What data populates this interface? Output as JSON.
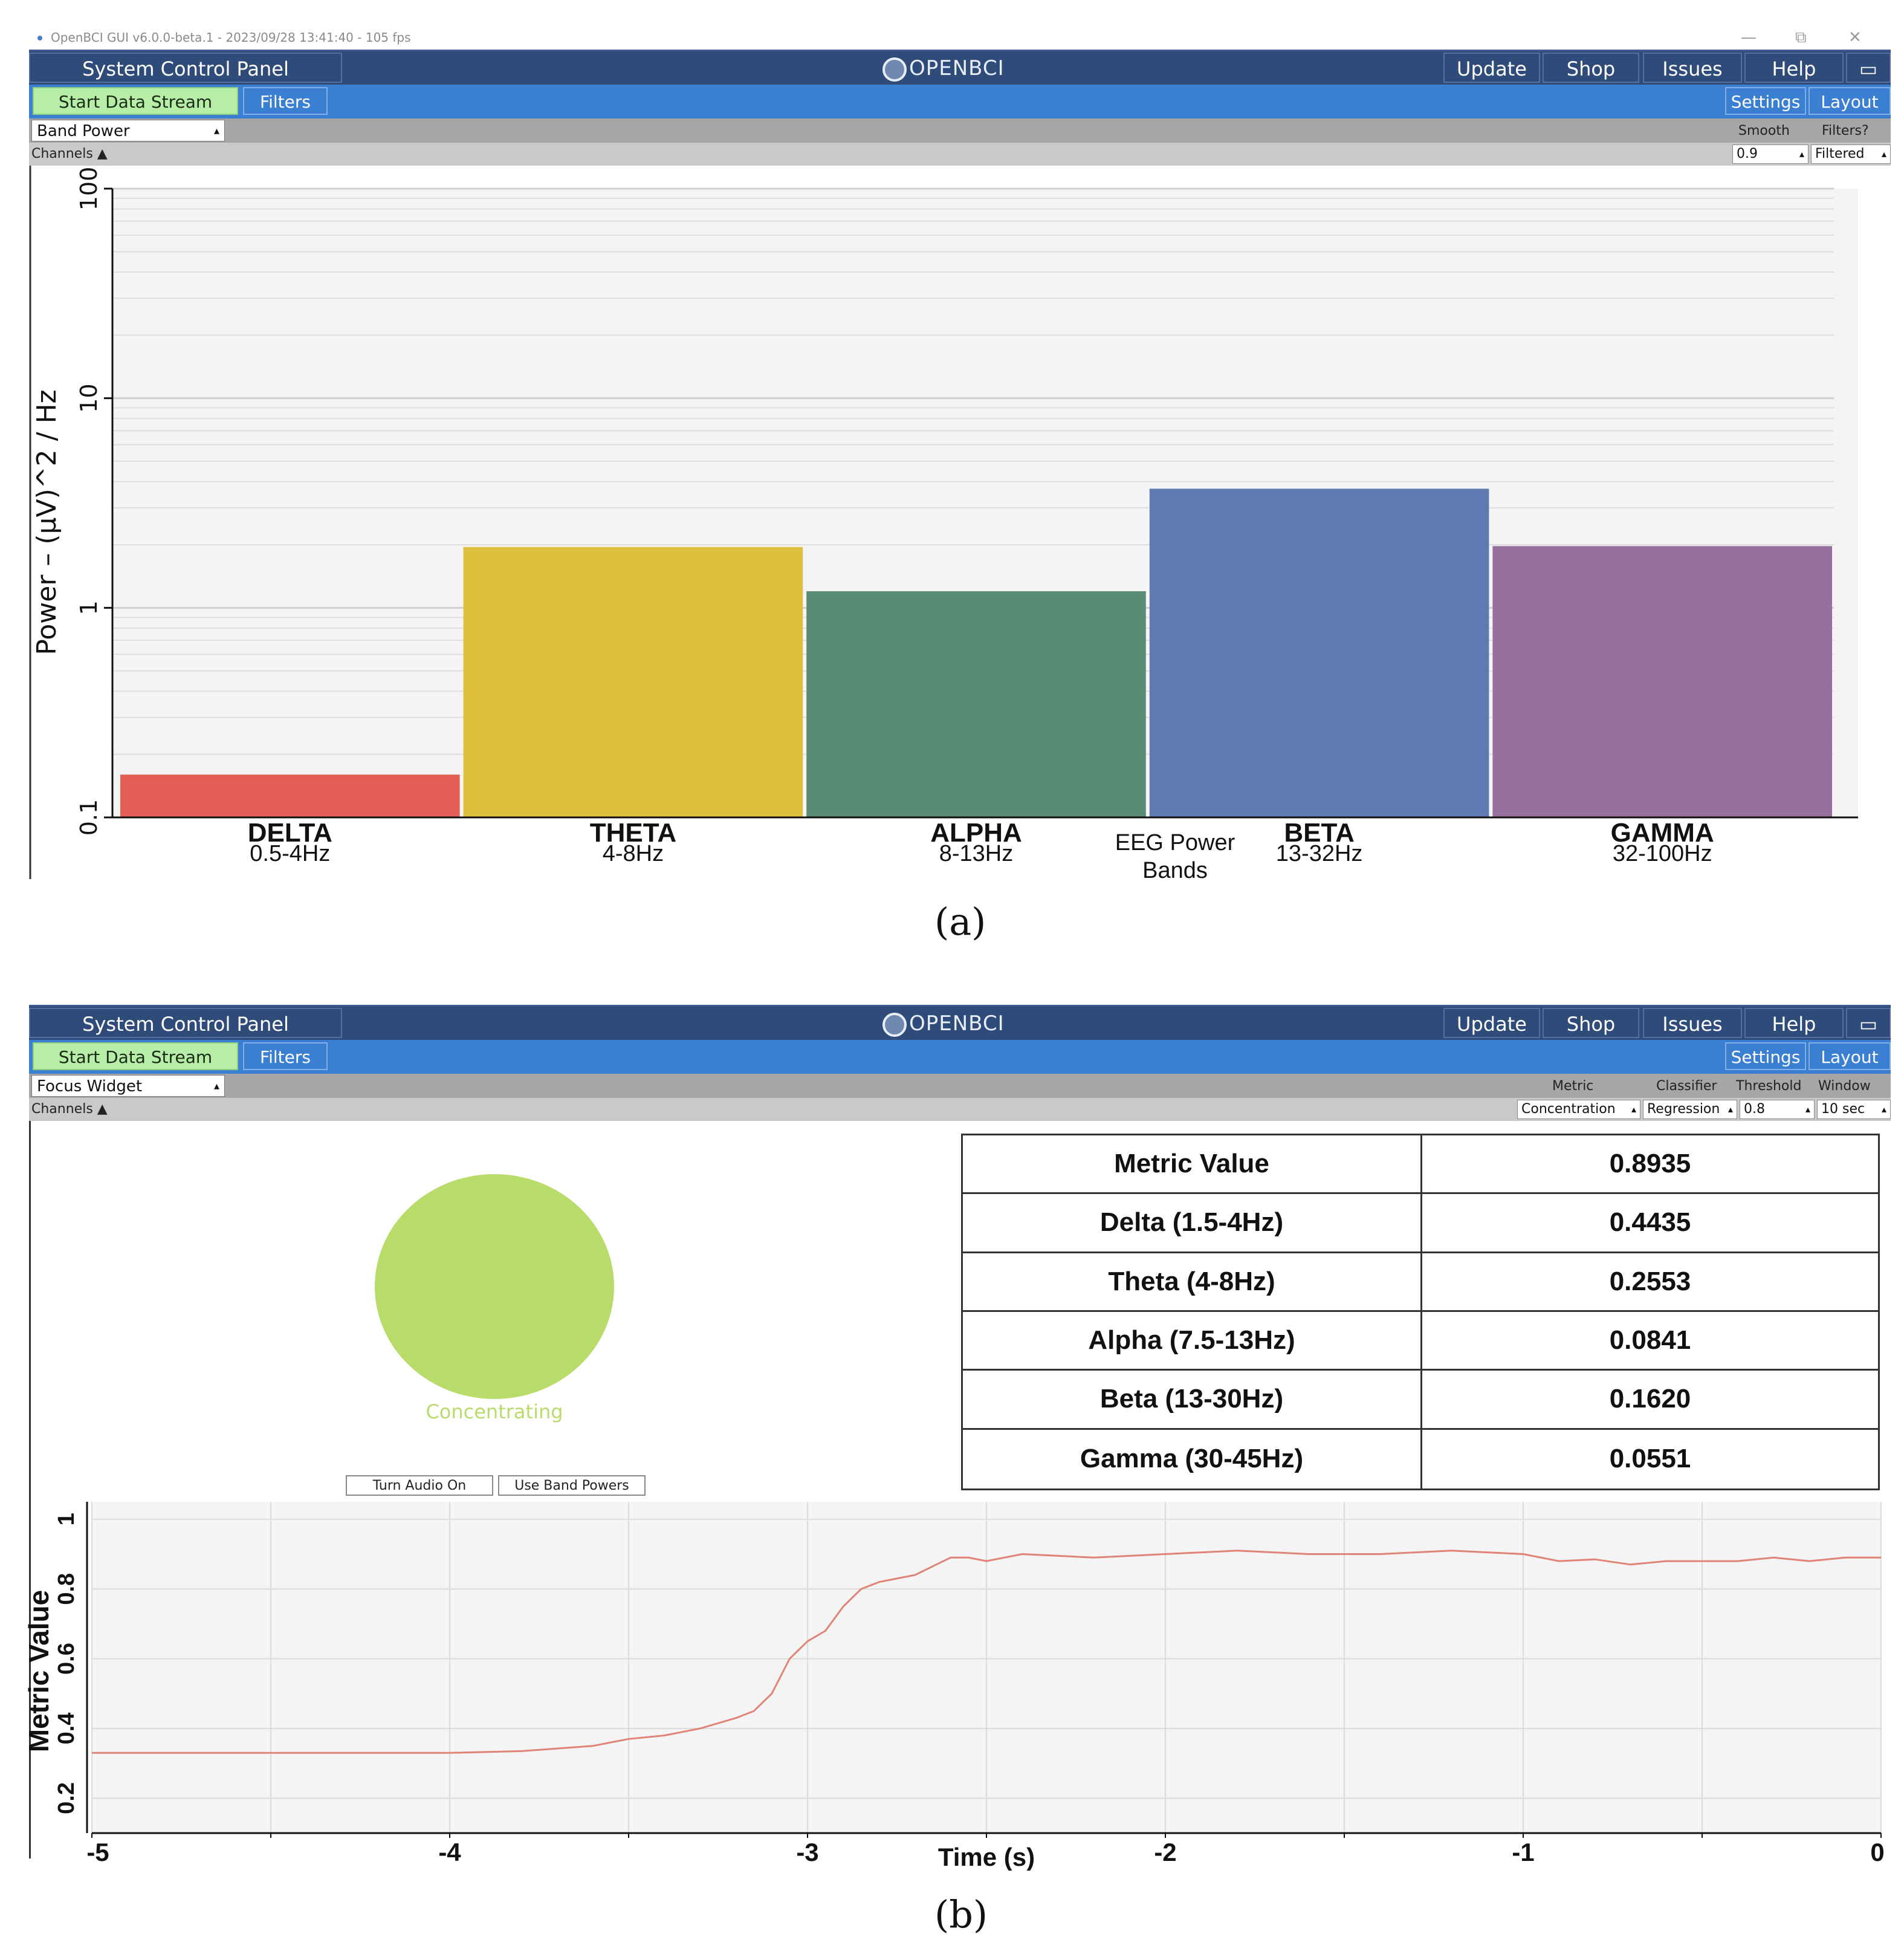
{
  "window": {
    "title": "OpenBCI GUI v6.0.0-beta.1 - 2023/09/28 13:41:40 - 105 fps",
    "minimize": "—",
    "restore": "⧉",
    "close": "✕"
  },
  "nav": {
    "system_control_panel": "System Control Panel",
    "logo": "OPENBCI",
    "update": "Update",
    "shop": "Shop",
    "issues": "Issues",
    "help": "Help",
    "fullscreen_icon": "▭"
  },
  "toolbar": {
    "start_data_stream": "Start Data Stream",
    "filters": "Filters",
    "settings": "Settings",
    "layout": "Layout"
  },
  "panel_a": {
    "widget_select": "Band Power",
    "channels": "Channels ▲",
    "smooth_label": "Smooth",
    "filters_label": "Filters?",
    "smooth_value": "0.9",
    "filters_value": "Filtered",
    "caption": "(a)"
  },
  "panel_b": {
    "widget_select": "Focus Widget",
    "channels": "Channels ▲",
    "metric_label": "Metric",
    "classifier_label": "Classifier",
    "threshold_label": "Threshold",
    "window_label": "Window",
    "metric_value": "Concentration",
    "classifier_value": "Regression",
    "threshold_value": "0.8",
    "window_value": "10 sec",
    "status_text": "Concentrating",
    "status_color": "#b7dc6a",
    "turn_audio_on": "Turn Audio On",
    "use_band_powers": "Use Band Powers",
    "caption": "(b)",
    "table": [
      {
        "label": "Metric Value",
        "value": "0.8935"
      },
      {
        "label": "Delta (1.5-4Hz)",
        "value": "0.4435"
      },
      {
        "label": "Theta (4-8Hz)",
        "value": "0.2553"
      },
      {
        "label": "Alpha (7.5-13Hz)",
        "value": "0.0841"
      },
      {
        "label": "Beta (13-30Hz)",
        "value": "0.1620"
      },
      {
        "label": "Gamma (30-45Hz)",
        "value": "0.0551"
      }
    ]
  },
  "chart_data": [
    {
      "type": "bar",
      "title": "",
      "ylabel": "Power – (μV)^2 / Hz",
      "xlabel": "EEG Power Bands",
      "yscale": "log",
      "ylim": [
        0.1,
        100
      ],
      "yticks": [
        "0.1",
        "1",
        "10",
        "100"
      ],
      "categories": [
        "DELTA",
        "THETA",
        "ALPHA",
        "BETA",
        "GAMMA"
      ],
      "category_ranges": [
        "0.5-4Hz",
        "4-8Hz",
        "8-13Hz",
        "13-32Hz",
        "32-100Hz"
      ],
      "values": [
        0.16,
        1.95,
        1.2,
        3.7,
        1.97
      ],
      "colors": [
        "#e35f55",
        "#e0bf3e",
        "#5a8b77",
        "#5e7ab1",
        "#96719f"
      ]
    },
    {
      "type": "line",
      "title": "",
      "xlabel": "Time (s)",
      "ylabel": "Metric Value",
      "xlim": [
        -5,
        0
      ],
      "ylim": [
        0.1,
        1.05
      ],
      "xticks": [
        "-5",
        "-4",
        "-3",
        "-2",
        "-1",
        "0"
      ],
      "yticks": [
        "0.2",
        "0.4",
        "0.6",
        "0.8",
        "1"
      ],
      "color": "#e08478",
      "x": [
        -5,
        -4.5,
        -4.0,
        -3.8,
        -3.6,
        -3.5,
        -3.4,
        -3.3,
        -3.2,
        -3.15,
        -3.1,
        -3.05,
        -3.0,
        -2.95,
        -2.9,
        -2.85,
        -2.8,
        -2.75,
        -2.7,
        -2.6,
        -2.55,
        -2.5,
        -2.4,
        -2.2,
        -2.0,
        -1.8,
        -1.6,
        -1.4,
        -1.2,
        -1.0,
        -0.9,
        -0.8,
        -0.7,
        -0.6,
        -0.5,
        -0.4,
        -0.3,
        -0.2,
        -0.1,
        0
      ],
      "y": [
        0.33,
        0.33,
        0.33,
        0.335,
        0.35,
        0.37,
        0.38,
        0.4,
        0.43,
        0.45,
        0.5,
        0.6,
        0.65,
        0.68,
        0.75,
        0.8,
        0.82,
        0.83,
        0.84,
        0.89,
        0.89,
        0.88,
        0.9,
        0.89,
        0.9,
        0.91,
        0.9,
        0.9,
        0.91,
        0.9,
        0.88,
        0.885,
        0.87,
        0.88,
        0.88,
        0.88,
        0.89,
        0.88,
        0.89,
        0.89
      ]
    }
  ]
}
